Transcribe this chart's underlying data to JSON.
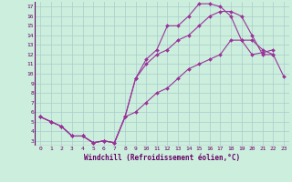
{
  "xlabel": "Windchill (Refroidissement éolien,°C)",
  "bg_color": "#cceedd",
  "grid_color": "#aacccc",
  "line_color": "#993399",
  "xlim": [
    -0.5,
    23.5
  ],
  "ylim": [
    2.5,
    17.5
  ],
  "xticks": [
    0,
    1,
    2,
    3,
    4,
    5,
    6,
    7,
    8,
    9,
    10,
    11,
    12,
    13,
    14,
    15,
    16,
    17,
    18,
    19,
    20,
    21,
    22,
    23
  ],
  "yticks": [
    3,
    4,
    5,
    6,
    7,
    8,
    9,
    10,
    11,
    12,
    13,
    14,
    15,
    16,
    17
  ],
  "line1_x": [
    0,
    1,
    2,
    3,
    4,
    5,
    6,
    7,
    8,
    9,
    10,
    11,
    12,
    13,
    14,
    15,
    16,
    17,
    18,
    19,
    20,
    21,
    22,
    23
  ],
  "line1_y": [
    5.5,
    5.0,
    4.5,
    3.5,
    3.5,
    2.8,
    3.0,
    2.8,
    5.5,
    9.5,
    11.5,
    12.5,
    15.0,
    15.0,
    16.0,
    17.3,
    17.3,
    17.0,
    16.0,
    13.5,
    12.0,
    12.2,
    12.5,
    null
  ],
  "line2_x": [
    0,
    1,
    2,
    3,
    4,
    5,
    6,
    7,
    8,
    9,
    10,
    11,
    12,
    13,
    14,
    15,
    16,
    17,
    18,
    19,
    20,
    21,
    22,
    23
  ],
  "line2_y": [
    5.5,
    5.0,
    4.5,
    3.5,
    3.5,
    2.8,
    3.0,
    2.8,
    5.5,
    9.5,
    11.0,
    12.0,
    12.5,
    13.5,
    14.0,
    15.0,
    16.0,
    16.5,
    16.5,
    16.0,
    14.0,
    12.0,
    12.0,
    null
  ],
  "line3_x": [
    0,
    1,
    2,
    3,
    4,
    5,
    6,
    7,
    8,
    9,
    10,
    11,
    12,
    13,
    14,
    15,
    16,
    17,
    18,
    19,
    20,
    21,
    22,
    23
  ],
  "line3_y": [
    5.5,
    5.0,
    4.5,
    3.5,
    3.5,
    2.8,
    3.0,
    2.8,
    5.5,
    6.0,
    7.0,
    8.0,
    8.5,
    9.5,
    10.5,
    11.0,
    11.5,
    12.0,
    13.5,
    13.5,
    13.5,
    12.5,
    12.0,
    9.7
  ]
}
